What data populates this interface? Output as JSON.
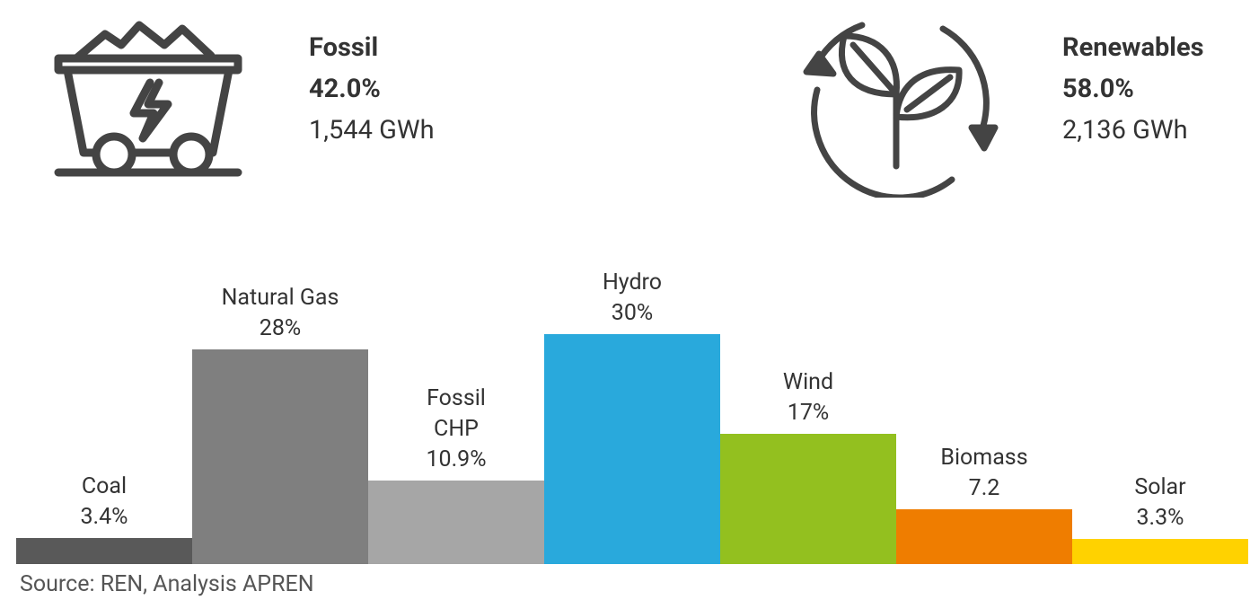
{
  "summary": {
    "fossil": {
      "label": "Fossil",
      "share": "42.0%",
      "energy": "1,544 GWh"
    },
    "renewables": {
      "label": "Renewables",
      "share": "58.0%",
      "energy": "2,136 GWh"
    }
  },
  "chart_data": {
    "type": "bar",
    "categories": [
      "Coal",
      "Natural Gas",
      "Fossil\nCHP",
      "Hydro",
      "Wind",
      "Biomass",
      "Solar"
    ],
    "values": [
      3.4,
      28,
      10.9,
      30,
      17,
      7.2,
      3.3
    ],
    "value_labels": [
      "3.4%",
      "28%",
      "10.9%",
      "30%",
      "17%",
      "7.2",
      "3.3%"
    ],
    "colors": [
      "#595959",
      "#7f7f7f",
      "#a6a6a6",
      "#29a9dc",
      "#93c01f",
      "#ef7d00",
      "#ffd200"
    ]
  },
  "source": "Source: REN, Analysis APREN"
}
